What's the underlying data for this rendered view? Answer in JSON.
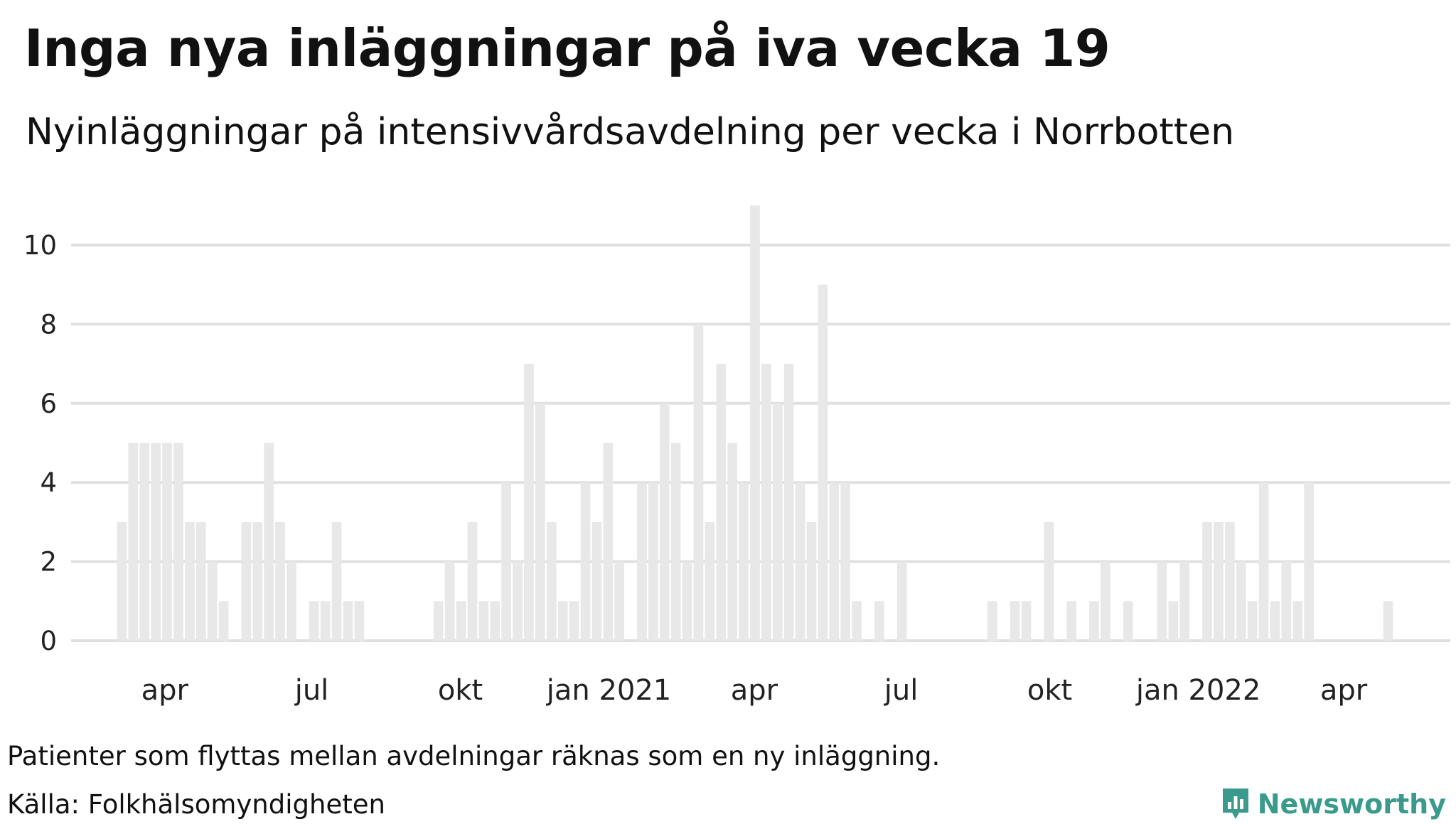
{
  "title": "Inga nya inläggningar på iva vecka 19",
  "subtitle": "Nyinläggningar på intensivvårdsavdelning per vecka i Norrbotten",
  "note": "Patienter som flyttas mellan avdelningar räknas som en ny inläggning.",
  "source": "Källa: Folkhälsomyndigheten",
  "brand": "Newsworthy",
  "colors": {
    "bar": "#e8e8e8",
    "grid": "#e0e0e0",
    "brand": "#3a9a8c",
    "text": "#111111"
  },
  "chart_data": {
    "type": "bar",
    "title": "Inga nya inläggningar på iva vecka 19",
    "subtitle": "Nyinläggningar på intensivvårdsavdelning per vecka i Norrbotten",
    "ylim": [
      0,
      11
    ],
    "yticks": [
      0,
      2,
      4,
      6,
      8,
      10
    ],
    "grid": true,
    "x_unit": "week",
    "x_start": "2020-03-02",
    "xlim": [
      "2020-02-03",
      "2022-06-06"
    ],
    "xticks": [
      {
        "label": "apr",
        "date": "2020-04-01"
      },
      {
        "label": "jul",
        "date": "2020-07-01"
      },
      {
        "label": "okt",
        "date": "2020-10-01"
      },
      {
        "label": "jan 2021",
        "date": "2021-01-01"
      },
      {
        "label": "apr",
        "date": "2021-04-01"
      },
      {
        "label": "jul",
        "date": "2021-07-01"
      },
      {
        "label": "okt",
        "date": "2021-10-01"
      },
      {
        "label": "jan 2022",
        "date": "2022-01-01"
      },
      {
        "label": "apr",
        "date": "2022-04-01"
      }
    ],
    "values": [
      3,
      5,
      5,
      5,
      5,
      5,
      3,
      3,
      2,
      1,
      0,
      3,
      3,
      5,
      3,
      2,
      0,
      1,
      1,
      3,
      1,
      1,
      0,
      0,
      0,
      0,
      0,
      0,
      1,
      2,
      1,
      3,
      1,
      1,
      4,
      2,
      7,
      6,
      3,
      1,
      1,
      4,
      3,
      5,
      2,
      0,
      4,
      4,
      6,
      5,
      2,
      8,
      3,
      7,
      5,
      4,
      11,
      7,
      6,
      7,
      4,
      3,
      9,
      4,
      4,
      1,
      0,
      1,
      0,
      2,
      0,
      0,
      0,
      0,
      0,
      0,
      0,
      1,
      0,
      1,
      1,
      0,
      3,
      0,
      1,
      0,
      1,
      2,
      0,
      1,
      0,
      0,
      2,
      1,
      2,
      0,
      3,
      3,
      3,
      2,
      1,
      4,
      1,
      2,
      1,
      4,
      0,
      0,
      0,
      0,
      0,
      0,
      1
    ]
  }
}
